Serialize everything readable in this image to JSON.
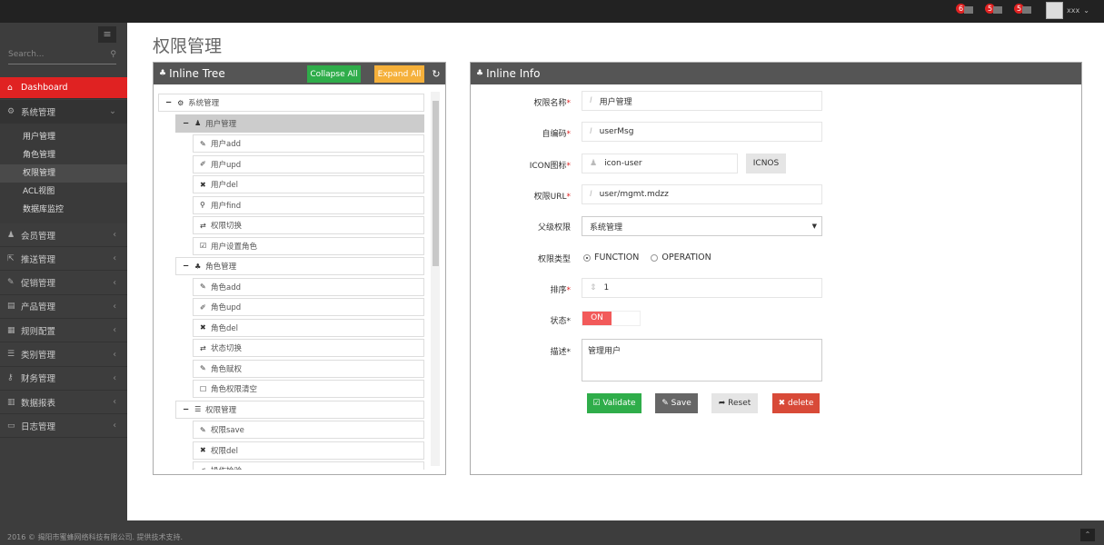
{
  "topbar": {
    "notifications": [
      {
        "count": "6",
        "icon": "warning-icon"
      },
      {
        "count": "5",
        "icon": "inbox-icon"
      },
      {
        "count": "5",
        "icon": "calendar-icon"
      }
    ],
    "username": "xxx"
  },
  "sidebar": {
    "search_placeholder": "Search...",
    "dashboard": "Dashboard",
    "expanded": {
      "label": "系统管理",
      "children": [
        "用户管理",
        "角色管理",
        "权限管理",
        "ACL视图",
        "数据库监控"
      ],
      "active_child": "权限管理"
    },
    "items": [
      {
        "label": "会员管理",
        "icon": "user-icon"
      },
      {
        "label": "推送管理",
        "icon": "share-icon"
      },
      {
        "label": "促销管理",
        "icon": "pencil-icon"
      },
      {
        "label": "产品管理",
        "icon": "book-icon"
      },
      {
        "label": "规则配置",
        "icon": "table-icon"
      },
      {
        "label": "类别管理",
        "icon": "list-icon"
      },
      {
        "label": "财务管理",
        "icon": "key-icon"
      },
      {
        "label": "数据报表",
        "icon": "bar-chart-icon"
      },
      {
        "label": "日志管理",
        "icon": "credit-card-icon"
      }
    ]
  },
  "page": {
    "title": "权限管理"
  },
  "tree": {
    "title": "Inline Tree",
    "collapse_all": "Collapse All",
    "expand_all": "Expand All",
    "root": "系统管理",
    "groups": [
      {
        "label": "用户管理",
        "icon": "user-icon",
        "selected": true,
        "children": [
          {
            "label": "用户add",
            "icon": "pencil-icon"
          },
          {
            "label": "用户upd",
            "icon": "edit-icon"
          },
          {
            "label": "用户del",
            "icon": "times-icon"
          },
          {
            "label": "用户find",
            "icon": "search-icon"
          },
          {
            "label": "权限切换",
            "icon": "retweet-icon"
          },
          {
            "label": "用户设置角色",
            "icon": "check-square-icon"
          }
        ]
      },
      {
        "label": "角色管理",
        "icon": "sitemap-icon",
        "children": [
          {
            "label": "角色add",
            "icon": "pencil-icon"
          },
          {
            "label": "角色upd",
            "icon": "edit-icon"
          },
          {
            "label": "角色del",
            "icon": "times-icon"
          },
          {
            "label": "状态切换",
            "icon": "retweet-icon"
          },
          {
            "label": "角色赋权",
            "icon": "pencil-icon"
          },
          {
            "label": "角色权限清空",
            "icon": "square-icon"
          }
        ]
      },
      {
        "label": "权限管理",
        "icon": "list-icon",
        "children": [
          {
            "label": "权限save",
            "icon": "pencil-icon"
          },
          {
            "label": "权限del",
            "icon": "times-icon"
          },
          {
            "label": "操作检验",
            "icon": "edit-icon"
          }
        ]
      }
    ]
  },
  "info": {
    "title": "Inline Info",
    "fields": {
      "name_label": "权限名称",
      "name_value": "用户管理",
      "code_label": "自编码",
      "code_value": "userMsg",
      "icon_label": "ICON图标",
      "icon_value": "icon-user",
      "icon_button": "ICNOS",
      "url_label": "权限URL",
      "url_value": "user/mgmt.mdzz",
      "parent_label": "父级权限",
      "parent_value": "系统管理",
      "type_label": "权限类型",
      "type_options": [
        "FUNCTION",
        "OPERATION"
      ],
      "type_selected": "FUNCTION",
      "sort_label": "排序",
      "sort_value": "1",
      "status_label": "状态*",
      "status_value": "ON",
      "desc_label": "描述*",
      "desc_value": "管理用户"
    },
    "buttons": {
      "validate": "Validate",
      "save": "Save",
      "reset": "Reset",
      "delete": "delete"
    },
    "colors": {
      "validate": "#2fad4a",
      "save": "#666666",
      "reset": "#e5e5e5",
      "delete": "#d84a38",
      "toggle_on": "#f25a5a"
    }
  },
  "footer": {
    "text": "2016 © 揭阳市蜜蜂网络科技有限公司. 提供技术支持."
  }
}
